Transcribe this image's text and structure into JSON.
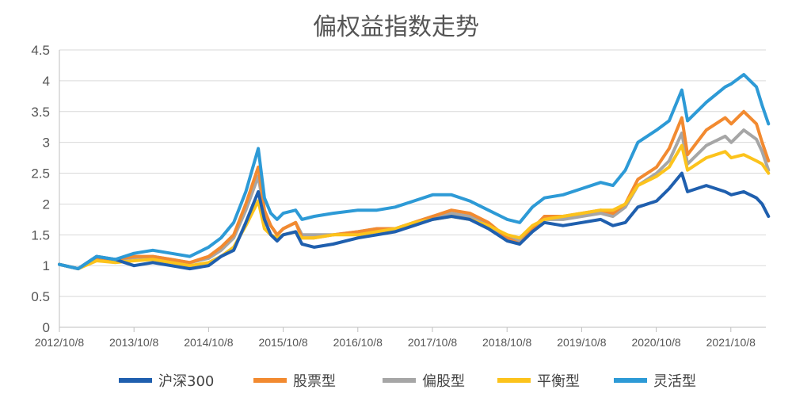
{
  "chart_data": {
    "type": "line",
    "title": "偏权益指数走势",
    "xlabel": "",
    "ylabel": "",
    "ylim": [
      0,
      4.5
    ],
    "yticks": [
      "0",
      "0.5",
      "1",
      "1.5",
      "2",
      "2.5",
      "3",
      "3.5",
      "4",
      "4.5"
    ],
    "xticks": [
      "2012/10/8",
      "2013/10/8",
      "2014/10/8",
      "2015/10/8",
      "2016/10/8",
      "2017/10/8",
      "2018/10/8",
      "2019/10/8",
      "2020/10/8",
      "2021/10/8"
    ],
    "grid": "horizontal",
    "legend_position": "bottom",
    "x": [
      "2012/10/8",
      "2013/1/8",
      "2013/4/8",
      "2013/7/8",
      "2013/10/8",
      "2014/1/8",
      "2014/4/8",
      "2014/7/8",
      "2014/10/8",
      "2014/12/8",
      "2015/2/8",
      "2015/4/8",
      "2015/6/8",
      "2015/7/8",
      "2015/8/8",
      "2015/9/8",
      "2015/10/8",
      "2015/12/8",
      "2016/1/8",
      "2016/3/8",
      "2016/6/8",
      "2016/10/8",
      "2017/1/8",
      "2017/4/8",
      "2017/7/8",
      "2017/10/8",
      "2018/1/8",
      "2018/4/8",
      "2018/7/8",
      "2018/10/8",
      "2018/12/8",
      "2019/2/8",
      "2019/4/8",
      "2019/7/8",
      "2019/10/8",
      "2020/1/8",
      "2020/3/8",
      "2020/5/8",
      "2020/7/8",
      "2020/10/8",
      "2020/12/8",
      "2021/2/8",
      "2021/3/8",
      "2021/6/8",
      "2021/9/8",
      "2021/10/8",
      "2021/12/8",
      "2022/2/8",
      "2022/3/8",
      "2022/4/8"
    ],
    "series": [
      {
        "name": "沪深300",
        "color": "#1f5fae",
        "values": [
          1.02,
          0.95,
          1.15,
          1.1,
          1.0,
          1.05,
          1.0,
          0.95,
          1.0,
          1.15,
          1.25,
          1.7,
          2.2,
          1.75,
          1.5,
          1.4,
          1.5,
          1.55,
          1.35,
          1.3,
          1.35,
          1.45,
          1.5,
          1.55,
          1.65,
          1.75,
          1.8,
          1.75,
          1.6,
          1.4,
          1.35,
          1.55,
          1.7,
          1.65,
          1.7,
          1.75,
          1.65,
          1.7,
          1.95,
          2.05,
          2.25,
          2.5,
          2.2,
          2.3,
          2.2,
          2.15,
          2.2,
          2.1,
          2.0,
          1.8
        ]
      },
      {
        "name": "股票型",
        "color": "#f28a30",
        "values": [
          1.02,
          0.95,
          1.12,
          1.1,
          1.15,
          1.15,
          1.1,
          1.05,
          1.15,
          1.3,
          1.5,
          2.0,
          2.6,
          1.9,
          1.65,
          1.5,
          1.6,
          1.7,
          1.45,
          1.45,
          1.5,
          1.55,
          1.6,
          1.6,
          1.7,
          1.8,
          1.9,
          1.85,
          1.7,
          1.45,
          1.35,
          1.6,
          1.8,
          1.8,
          1.85,
          1.9,
          1.85,
          2.0,
          2.4,
          2.6,
          2.9,
          3.4,
          2.8,
          3.2,
          3.4,
          3.3,
          3.5,
          3.3,
          3.0,
          2.7
        ]
      },
      {
        "name": "偏股型",
        "color": "#a6a6a6",
        "values": [
          1.02,
          0.95,
          1.12,
          1.1,
          1.13,
          1.15,
          1.1,
          1.05,
          1.12,
          1.25,
          1.45,
          1.9,
          2.45,
          1.85,
          1.65,
          1.5,
          1.6,
          1.7,
          1.5,
          1.5,
          1.5,
          1.55,
          1.6,
          1.6,
          1.7,
          1.8,
          1.85,
          1.8,
          1.65,
          1.45,
          1.4,
          1.6,
          1.75,
          1.75,
          1.8,
          1.85,
          1.8,
          1.95,
          2.3,
          2.5,
          2.7,
          3.15,
          2.65,
          2.95,
          3.1,
          3.0,
          3.2,
          3.05,
          2.85,
          2.55
        ]
      },
      {
        "name": "平衡型",
        "color": "#fcc31c",
        "values": [
          1.02,
          0.95,
          1.08,
          1.05,
          1.08,
          1.1,
          1.05,
          1.0,
          1.05,
          1.15,
          1.3,
          1.65,
          2.05,
          1.6,
          1.5,
          1.45,
          1.5,
          1.55,
          1.45,
          1.45,
          1.5,
          1.5,
          1.55,
          1.6,
          1.7,
          1.75,
          1.8,
          1.75,
          1.65,
          1.5,
          1.45,
          1.65,
          1.75,
          1.8,
          1.85,
          1.9,
          1.9,
          2.0,
          2.3,
          2.45,
          2.6,
          2.95,
          2.55,
          2.75,
          2.85,
          2.75,
          2.8,
          2.7,
          2.65,
          2.5
        ]
      },
      {
        "name": "灵活型",
        "color": "#2d9ad6",
        "values": [
          1.02,
          0.95,
          1.15,
          1.1,
          1.2,
          1.25,
          1.2,
          1.15,
          1.3,
          1.45,
          1.7,
          2.2,
          2.9,
          2.1,
          1.85,
          1.75,
          1.85,
          1.9,
          1.75,
          1.8,
          1.85,
          1.9,
          1.9,
          1.95,
          2.05,
          2.15,
          2.15,
          2.05,
          1.9,
          1.75,
          1.7,
          1.95,
          2.1,
          2.15,
          2.25,
          2.35,
          2.3,
          2.55,
          3.0,
          3.2,
          3.35,
          3.85,
          3.35,
          3.65,
          3.9,
          3.95,
          4.1,
          3.9,
          3.6,
          3.3
        ]
      }
    ]
  }
}
